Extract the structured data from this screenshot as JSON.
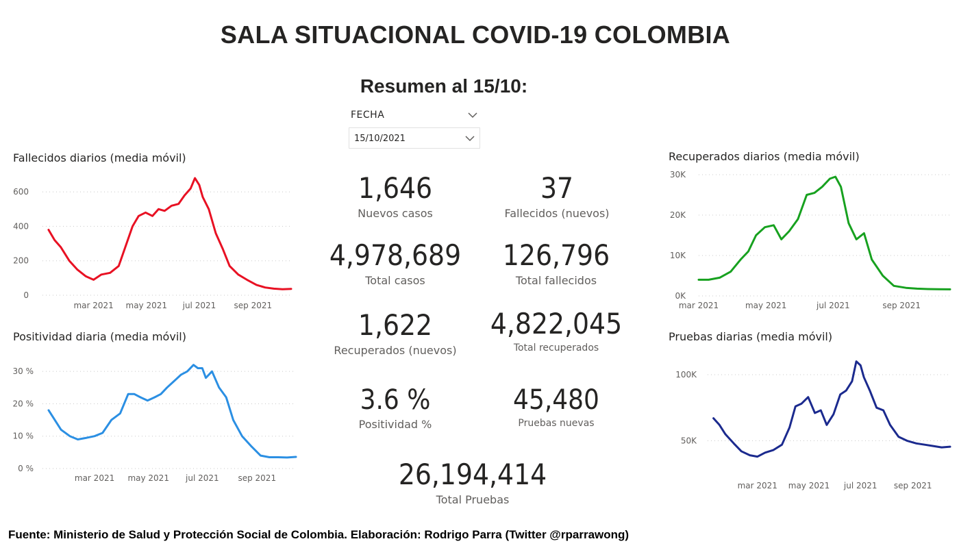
{
  "header": {
    "title": "SALA SITUACIONAL COVID-19 COLOMBIA",
    "subtitle": "Resumen al 15/10:"
  },
  "slicer": {
    "label": "FECHA",
    "selected": "15/10/2021"
  },
  "kpis": {
    "nuevos_casos": {
      "value": "1,646",
      "label": "Nuevos casos"
    },
    "fallecidos_nuevos": {
      "value": "37",
      "label": "Fallecidos (nuevos)"
    },
    "total_casos": {
      "value": "4,978,689",
      "label": "Total casos"
    },
    "total_fallecidos": {
      "value": "126,796",
      "label": "Total fallecidos"
    },
    "recuperados_nuevos": {
      "value": "1,622",
      "label": "Recuperados (nuevos)"
    },
    "total_recuperados": {
      "value": "4,822,045",
      "label": "Total recuperados"
    },
    "positividad": {
      "value": "3.6 %",
      "label": "Positividad %"
    },
    "pruebas_nuevas": {
      "value": "45,480",
      "label": "Pruebas nuevas"
    },
    "total_pruebas": {
      "value": "26,194,414",
      "label": "Total Pruebas"
    }
  },
  "footer": {
    "text": "Fuente: Ministerio de Salud y Protección Social de Colombia. Elaboración: Rodrigo Parra (Twitter @rparrawong)"
  },
  "colors": {
    "fallecidos": "#e81123",
    "positividad": "#2b8fe3",
    "recuperados": "#17a11f",
    "pruebas": "#1b2a8e",
    "gridline": "#c8c8c8",
    "axis_text": "#605e5c"
  },
  "chart_data": [
    {
      "id": "fallecidos",
      "type": "line",
      "title": "Fallecidos diarios (media móvil)",
      "x_tick_labels": [
        "mar 2021",
        "may 2021",
        "jul 2021",
        "sep 2021"
      ],
      "x_tick_dates": [
        "2021-03-01",
        "2021-05-01",
        "2021-07-01",
        "2021-09-01"
      ],
      "xlim": [
        "2021-01-01",
        "2021-10-15"
      ],
      "ylim": [
        0,
        700
      ],
      "y_ticks": [
        0,
        200,
        400,
        600
      ],
      "y_tick_labels": [
        "0",
        "200",
        "400",
        "600"
      ],
      "grid": true,
      "series": [
        {
          "x": [
            "2021-01-08",
            "2021-01-15",
            "2021-01-22",
            "2021-02-01",
            "2021-02-10",
            "2021-02-20",
            "2021-03-01",
            "2021-03-10",
            "2021-03-20",
            "2021-03-30",
            "2021-04-08",
            "2021-04-15",
            "2021-04-22",
            "2021-04-30",
            "2021-05-08",
            "2021-05-15",
            "2021-05-22",
            "2021-05-30",
            "2021-06-07",
            "2021-06-14",
            "2021-06-21",
            "2021-06-26",
            "2021-07-01",
            "2021-07-05",
            "2021-07-12",
            "2021-07-20",
            "2021-07-28",
            "2021-08-05",
            "2021-08-15",
            "2021-08-25",
            "2021-09-05",
            "2021-09-15",
            "2021-09-25",
            "2021-10-05",
            "2021-10-15"
          ],
          "y": [
            380,
            320,
            280,
            200,
            150,
            110,
            90,
            120,
            130,
            170,
            300,
            400,
            460,
            480,
            460,
            500,
            490,
            520,
            530,
            580,
            620,
            680,
            640,
            570,
            500,
            360,
            270,
            170,
            120,
            90,
            60,
            45,
            38,
            35,
            37
          ]
        }
      ]
    },
    {
      "id": "positividad",
      "type": "line",
      "title": "Positividad diaria (media móvil)",
      "x_tick_labels": [
        "mar 2021",
        "may 2021",
        "jul 2021",
        "sep 2021"
      ],
      "x_tick_dates": [
        "2021-03-01",
        "2021-05-01",
        "2021-07-01",
        "2021-09-01"
      ],
      "xlim": [
        "2021-01-01",
        "2021-10-15"
      ],
      "ylim": [
        0,
        33
      ],
      "y_ticks": [
        0,
        10,
        20,
        30
      ],
      "y_tick_labels": [
        "0 %",
        "10 %",
        "20 %",
        "30 %"
      ],
      "grid": true,
      "series": [
        {
          "x": [
            "2021-01-08",
            "2021-01-15",
            "2021-01-22",
            "2021-02-01",
            "2021-02-10",
            "2021-02-20",
            "2021-03-01",
            "2021-03-10",
            "2021-03-20",
            "2021-03-30",
            "2021-04-08",
            "2021-04-15",
            "2021-04-22",
            "2021-04-30",
            "2021-05-08",
            "2021-05-15",
            "2021-05-22",
            "2021-05-30",
            "2021-06-07",
            "2021-06-14",
            "2021-06-21",
            "2021-06-26",
            "2021-07-01",
            "2021-07-05",
            "2021-07-12",
            "2021-07-20",
            "2021-07-28",
            "2021-08-05",
            "2021-08-15",
            "2021-08-25",
            "2021-09-05",
            "2021-09-15",
            "2021-09-25",
            "2021-10-05",
            "2021-10-15"
          ],
          "y": [
            18,
            15,
            12,
            10,
            9,
            9.5,
            10,
            11,
            15,
            17,
            23,
            23,
            22,
            21,
            22,
            23,
            25,
            27,
            29,
            30,
            32,
            31,
            31,
            28,
            30,
            25,
            22,
            15,
            10,
            7,
            4,
            3.5,
            3.5,
            3.4,
            3.6
          ]
        }
      ]
    },
    {
      "id": "recuperados",
      "type": "line",
      "title": "Recuperados diarios (media móvil)",
      "x_tick_labels": [
        "mar 2021",
        "may 2021",
        "jul 2021",
        "sep 2021"
      ],
      "x_tick_dates": [
        "2021-03-01",
        "2021-05-01",
        "2021-07-01",
        "2021-09-01"
      ],
      "xlim": [
        "2021-03-01",
        "2021-10-15"
      ],
      "ylim": [
        0,
        30000
      ],
      "y_ticks": [
        0,
        10000,
        20000,
        30000
      ],
      "y_tick_labels": [
        "0K",
        "10K",
        "20K",
        "30K"
      ],
      "grid": true,
      "series": [
        {
          "x": [
            "2021-03-01",
            "2021-03-10",
            "2021-03-20",
            "2021-03-30",
            "2021-04-08",
            "2021-04-15",
            "2021-04-22",
            "2021-04-30",
            "2021-05-08",
            "2021-05-15",
            "2021-05-22",
            "2021-05-30",
            "2021-06-07",
            "2021-06-14",
            "2021-06-21",
            "2021-06-28",
            "2021-07-03",
            "2021-07-08",
            "2021-07-15",
            "2021-07-22",
            "2021-07-29",
            "2021-08-05",
            "2021-08-15",
            "2021-08-25",
            "2021-09-05",
            "2021-09-15",
            "2021-09-25",
            "2021-10-05",
            "2021-10-15"
          ],
          "y": [
            4000,
            4000,
            4500,
            6000,
            9000,
            11000,
            15000,
            17000,
            17500,
            14000,
            16000,
            19000,
            25000,
            25500,
            27000,
            29000,
            29500,
            27000,
            18000,
            14000,
            15500,
            9000,
            5000,
            2500,
            2000,
            1800,
            1700,
            1650,
            1622
          ]
        }
      ]
    },
    {
      "id": "pruebas",
      "type": "line",
      "title": "Pruebas diarias (media móvil)",
      "x_tick_labels": [
        "mar 2021",
        "may 2021",
        "jul 2021",
        "sep 2021"
      ],
      "x_tick_dates": [
        "2021-03-01",
        "2021-05-01",
        "2021-07-01",
        "2021-09-01"
      ],
      "xlim": [
        "2021-01-01",
        "2021-10-15"
      ],
      "ylim": [
        30000,
        115000
      ],
      "y_ticks": [
        50000,
        100000
      ],
      "y_tick_labels": [
        "50K",
        "100K"
      ],
      "grid": true,
      "series": [
        {
          "x": [
            "2021-01-08",
            "2021-01-15",
            "2021-01-22",
            "2021-02-01",
            "2021-02-10",
            "2021-02-20",
            "2021-03-01",
            "2021-03-10",
            "2021-03-20",
            "2021-03-30",
            "2021-04-08",
            "2021-04-15",
            "2021-04-22",
            "2021-04-30",
            "2021-05-08",
            "2021-05-15",
            "2021-05-22",
            "2021-05-30",
            "2021-06-07",
            "2021-06-14",
            "2021-06-21",
            "2021-06-26",
            "2021-07-01",
            "2021-07-05",
            "2021-07-12",
            "2021-07-20",
            "2021-07-28",
            "2021-08-05",
            "2021-08-15",
            "2021-08-25",
            "2021-09-05",
            "2021-09-15",
            "2021-09-25",
            "2021-10-05",
            "2021-10-15"
          ],
          "y": [
            67000,
            62000,
            55000,
            48000,
            42000,
            39000,
            38000,
            41000,
            43000,
            47000,
            60000,
            76000,
            78000,
            83000,
            71000,
            73000,
            62000,
            70000,
            85000,
            88000,
            95000,
            110000,
            107000,
            98000,
            88000,
            75000,
            73000,
            62000,
            53000,
            50000,
            48000,
            47000,
            46000,
            45000,
            45480
          ]
        }
      ]
    }
  ]
}
